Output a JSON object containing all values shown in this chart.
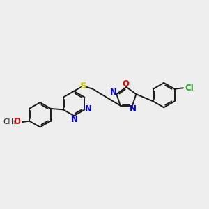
{
  "background_color": "#eeeeee",
  "bond_color": "#1a1a1a",
  "atom_colors": {
    "N": "#0000ee",
    "O": "#ee0000",
    "S": "#cccc00",
    "Cl": "#22aa22",
    "C": "#1a1a1a"
  },
  "lw": 1.4,
  "fs": 8.5,
  "r_hex": 0.6,
  "r_pent": 0.5
}
